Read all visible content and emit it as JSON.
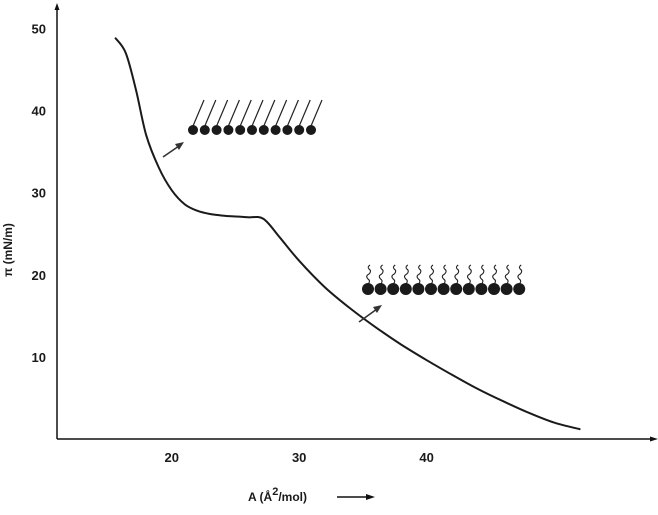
{
  "chart_data": {
    "type": "line",
    "title": "",
    "xlabel": "A (Å2/mol)",
    "xlabel_parts": {
      "prefix": "A (Å",
      "superscript": "2",
      "suffix": "/mol)"
    },
    "ylabel": "π (mN/m)",
    "xlim": [
      11,
      52.5
    ],
    "ylim": [
      0,
      52
    ],
    "xticks": [
      20,
      30,
      40
    ],
    "yticks": [
      10,
      20,
      30,
      40,
      50
    ],
    "grid": false,
    "legend": "none",
    "series": [
      {
        "x": [
          15.6,
          16.4,
          17.2,
          18.0,
          19.0,
          20.0,
          21.0,
          22.0,
          23.0,
          24.0,
          25.0,
          26.0,
          27.2,
          28.5,
          30.0,
          32.0,
          34.0,
          36.0,
          38.0,
          40.0,
          42.0,
          44.0,
          46.0,
          48.0,
          50.0,
          52.0
        ],
        "y": [
          48.8,
          47.0,
          42.5,
          37.0,
          33.0,
          30.3,
          28.6,
          27.8,
          27.4,
          27.2,
          27.1,
          27.0,
          26.8,
          24.5,
          21.7,
          18.5,
          15.9,
          13.6,
          11.5,
          9.6,
          7.8,
          6.1,
          4.6,
          3.2,
          2.0,
          1.2
        ]
      }
    ],
    "annotations": [
      {
        "type": "molecule-diagram",
        "phase": "condensed",
        "tails": "straight",
        "count": 11
      },
      {
        "type": "molecule-diagram",
        "phase": "expanded",
        "tails": "wavy",
        "count": 13
      }
    ]
  }
}
